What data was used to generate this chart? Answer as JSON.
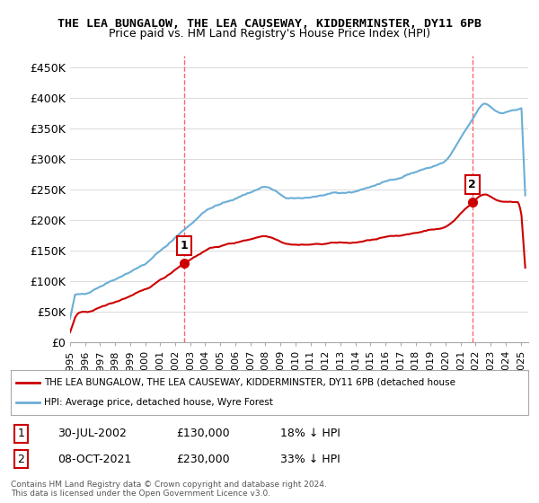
{
  "title_line1": "THE LEA BUNGALOW, THE LEA CAUSEWAY, KIDDERMINSTER, DY11 6PB",
  "title_line2": "Price paid vs. HM Land Registry's House Price Index (HPI)",
  "ylabel_values": [
    "£0",
    "£50K",
    "£100K",
    "£150K",
    "£200K",
    "£250K",
    "£300K",
    "£350K",
    "£400K",
    "£450K"
  ],
  "ytick_values": [
    0,
    50000,
    100000,
    150000,
    200000,
    250000,
    300000,
    350000,
    400000,
    450000
  ],
  "ylim": [
    0,
    470000
  ],
  "xlim_start": 1995.0,
  "xlim_end": 2025.5,
  "hpi_color": "#6baed6",
  "price_color": "#cc0000",
  "sale1_x": 2002.58,
  "sale1_y": 130000,
  "sale1_label": "1",
  "sale2_x": 2021.77,
  "sale2_y": 230000,
  "sale2_label": "2",
  "vline_color": "#ff6666",
  "legend_line1": "THE LEA BUNGALOW, THE LEA CAUSEWAY, KIDDERMINSTER, DY11 6PB (detached house",
  "legend_line2": "HPI: Average price, detached house, Wyre Forest",
  "table_row1": [
    "1",
    "30-JUL-2002",
    "£130,000",
    "18% ↓ HPI"
  ],
  "table_row2": [
    "2",
    "08-OCT-2021",
    "£230,000",
    "33% ↓ HPI"
  ],
  "footnote": "Contains HM Land Registry data © Crown copyright and database right 2024.\nThis data is licensed under the Open Government Licence v3.0.",
  "bg_color": "#ffffff",
  "grid_color": "#dddddd"
}
